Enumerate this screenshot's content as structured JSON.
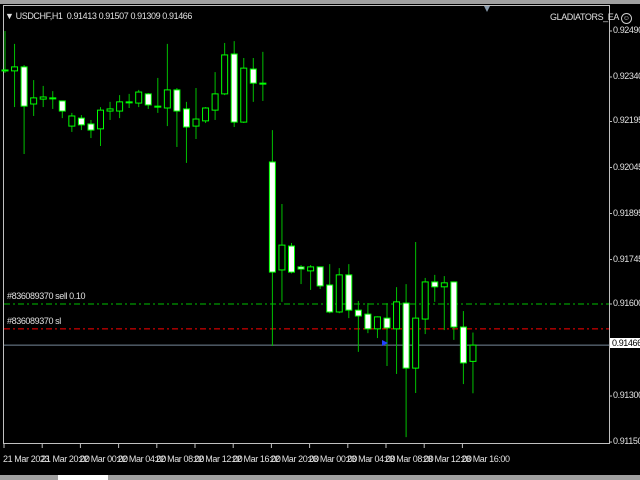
{
  "header": {
    "symbol": "USDCHF,H1",
    "open": "0.91413",
    "high": "0.91507",
    "low": "0.91309",
    "close": "0.91466"
  },
  "ea_label": "GLADIATORS_EA",
  "ea_icon": "smiley-icon",
  "colors": {
    "background": "#000000",
    "bull_outline": "#00ff00",
    "bear_body": "#ffffff",
    "wick": "#00c000",
    "sell_line": "#00c000",
    "sl_line": "#ff0000",
    "bid_line": "#778899",
    "frame": "#c0c0c0"
  },
  "orders": {
    "sell": {
      "label": "#836089370 sell 0.10",
      "price": 0.916
    },
    "sl": {
      "label": "#836089370 sl",
      "price": 0.91519
    }
  },
  "current_price": {
    "label": "0.91466",
    "price": 0.91466
  },
  "chart_data": {
    "type": "candlestick",
    "timeframe": "H1",
    "ylim": [
      0.9115,
      0.9249
    ],
    "y_ticks": [
      "0.92490",
      "0.92340",
      "0.92195",
      "0.92045",
      "0.91895",
      "0.91745",
      "0.91600",
      "0.91300",
      "0.91150"
    ],
    "x_ticks": [
      "21 Mar 2023",
      "21 Mar 20:00",
      "22 Mar 00:00",
      "22 Mar 04:00",
      "22 Mar 08:00",
      "22 Mar 12:00",
      "22 Mar 16:00",
      "22 Mar 20:00",
      "23 Mar 00:00",
      "23 Mar 04:00",
      "23 Mar 08:00",
      "23 Mar 12:00",
      "23 Mar 16:00"
    ],
    "ohlc": [
      [
        0.92363,
        0.9249,
        0.92353,
        0.9236
      ],
      [
        0.9236,
        0.92448,
        0.92242,
        0.92373
      ],
      [
        0.92373,
        0.92379,
        0.92089,
        0.92245
      ],
      [
        0.92252,
        0.9233,
        0.92213,
        0.92272
      ],
      [
        0.92268,
        0.92311,
        0.92242,
        0.92275
      ],
      [
        0.92272,
        0.92294,
        0.92236,
        0.9227
      ],
      [
        0.92262,
        0.92262,
        0.92206,
        0.92229
      ],
      [
        0.9218,
        0.92223,
        0.92161,
        0.92213
      ],
      [
        0.92206,
        0.92216,
        0.92167,
        0.92184
      ],
      [
        0.92187,
        0.922,
        0.92141,
        0.92167
      ],
      [
        0.92171,
        0.92242,
        0.92115,
        0.92232
      ],
      [
        0.92229,
        0.92259,
        0.922,
        0.92236
      ],
      [
        0.92229,
        0.92281,
        0.92206,
        0.92259
      ],
      [
        0.92259,
        0.92285,
        0.92239,
        0.92257
      ],
      [
        0.92255,
        0.92298,
        0.92242,
        0.92291
      ],
      [
        0.92285,
        0.92288,
        0.92236,
        0.92249
      ],
      [
        0.92245,
        0.92337,
        0.92223,
        0.92242
      ],
      [
        0.92239,
        0.92448,
        0.9218,
        0.92298
      ],
      [
        0.92298,
        0.92304,
        0.92112,
        0.92229
      ],
      [
        0.92236,
        0.92259,
        0.9206,
        0.92177
      ],
      [
        0.9218,
        0.92304,
        0.92138,
        0.92203
      ],
      [
        0.92197,
        0.92242,
        0.9219,
        0.92239
      ],
      [
        0.92232,
        0.92356,
        0.922,
        0.92285
      ],
      [
        0.92285,
        0.92451,
        0.92281,
        0.92412
      ],
      [
        0.92415,
        0.92457,
        0.92177,
        0.92193
      ],
      [
        0.92193,
        0.92402,
        0.9219,
        0.92369
      ],
      [
        0.92366,
        0.92402,
        0.92259,
        0.9232
      ],
      [
        0.9232,
        0.92422,
        0.92262,
        0.92318
      ],
      [
        0.92063,
        0.92167,
        0.91463,
        0.91704
      ],
      [
        0.91711,
        0.91926,
        0.91607,
        0.91792
      ],
      [
        0.91789,
        0.91799,
        0.917,
        0.91704
      ],
      [
        0.91721,
        0.91727,
        0.91665,
        0.91714
      ],
      [
        0.91708,
        0.91727,
        0.91646,
        0.91721
      ],
      [
        0.91721,
        0.91721,
        0.91649,
        0.91659
      ],
      [
        0.91662,
        0.9173,
        0.9157,
        0.91574
      ],
      [
        0.91574,
        0.91717,
        0.9157,
        0.91695
      ],
      [
        0.91695,
        0.9173,
        0.91554,
        0.9158
      ],
      [
        0.9158,
        0.9161,
        0.91444,
        0.91561
      ],
      [
        0.91567,
        0.91603,
        0.91505,
        0.91519
      ],
      [
        0.91519,
        0.9156,
        0.91489,
        0.91558
      ],
      [
        0.91554,
        0.91603,
        0.91398,
        0.91522
      ],
      [
        0.91519,
        0.91655,
        0.91372,
        0.91607
      ],
      [
        0.91603,
        0.91665,
        0.91166,
        0.91391
      ],
      [
        0.91391,
        0.91802,
        0.9131,
        0.91554
      ],
      [
        0.91551,
        0.91685,
        0.91502,
        0.91672
      ],
      [
        0.91672,
        0.91695,
        0.91607,
        0.91656
      ],
      [
        0.91656,
        0.91691,
        0.91515,
        0.91669
      ],
      [
        0.91672,
        0.91672,
        0.91483,
        0.91525
      ],
      [
        0.91525,
        0.91577,
        0.91339,
        0.91408
      ],
      [
        0.91413,
        0.91507,
        0.91309,
        0.91466
      ]
    ]
  }
}
